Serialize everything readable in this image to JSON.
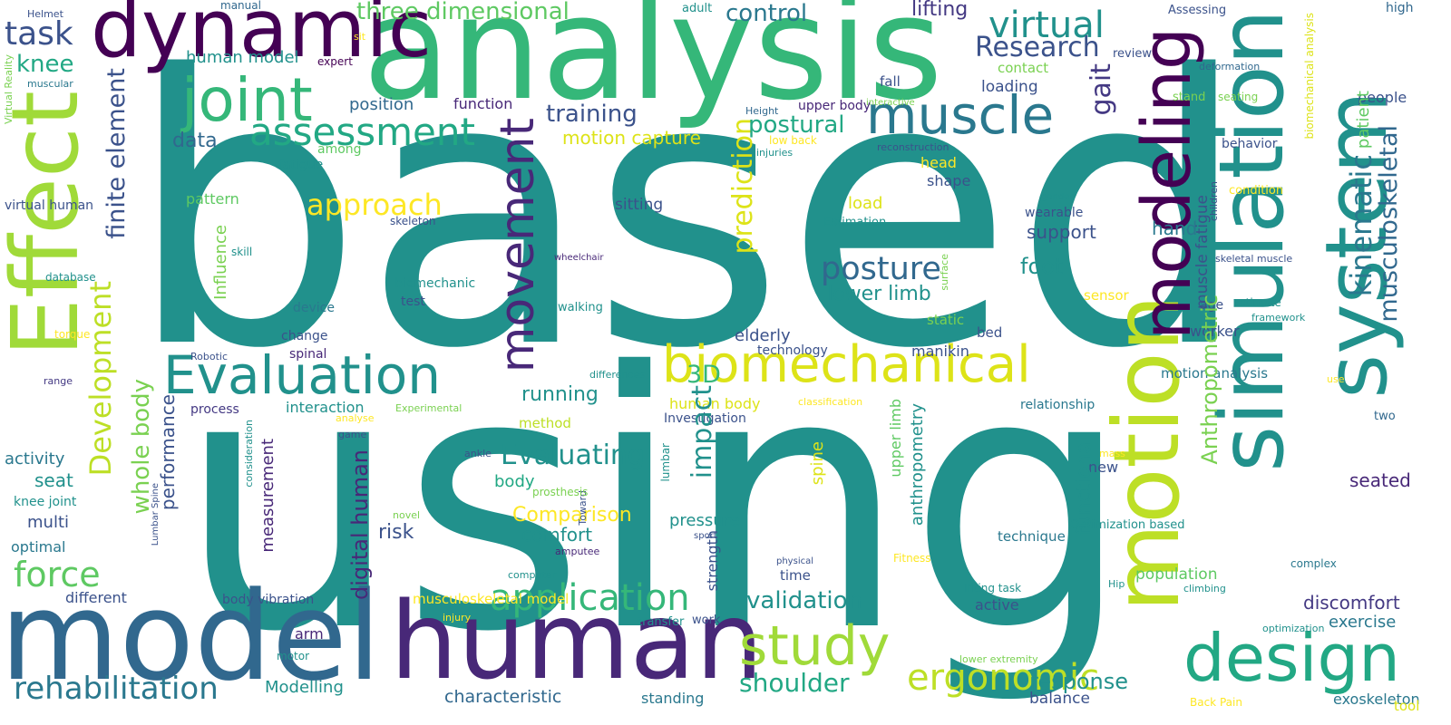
{
  "palette": {
    "teal": "#21918c",
    "tealDark": "#2a788e",
    "blue": "#31688e",
    "navy": "#3b528b",
    "indigo": "#443983",
    "purple": "#482878",
    "darkPurple": "#440154",
    "green": "#35b779",
    "midGreen": "#22a884",
    "lightGreen": "#5ec962",
    "lime": "#7ad151",
    "yellowGreen": "#a0da39",
    "limeYellow": "#bddf26",
    "yellow": "#dde318",
    "brightYellow": "#fde725"
  },
  "words": [
    {
      "text": "based",
      "color": "teal"
    },
    {
      "text": "using",
      "color": "teal"
    },
    {
      "text": "analysis",
      "color": "green"
    },
    {
      "text": "dynamic",
      "color": "darkPurple"
    },
    {
      "text": "Effect",
      "color": "yellowGreen"
    },
    {
      "text": "model",
      "color": "blue"
    },
    {
      "text": "human",
      "color": "purple"
    },
    {
      "text": "motion",
      "color": "limeYellow"
    },
    {
      "text": "simulation",
      "color": "teal"
    },
    {
      "text": "system",
      "color": "teal"
    },
    {
      "text": "modeling",
      "color": "darkPurple"
    },
    {
      "text": "design",
      "color": "midGreen"
    },
    {
      "text": "joint",
      "color": "green"
    },
    {
      "text": "muscle",
      "color": "tealDark"
    },
    {
      "text": "Evaluation",
      "color": "teal"
    },
    {
      "text": "biomechanical",
      "color": "yellow"
    },
    {
      "text": "movement",
      "color": "purple"
    },
    {
      "text": "study",
      "color": "yellowGreen"
    },
    {
      "text": "assessment",
      "color": "midGreen"
    },
    {
      "text": "posture",
      "color": "blue"
    },
    {
      "text": "application",
      "color": "green"
    },
    {
      "text": "ergonomic",
      "color": "limeYellow"
    },
    {
      "text": "virtual",
      "color": "teal"
    },
    {
      "text": "kinematic",
      "color": "tealDark"
    },
    {
      "text": "musculoskeletal",
      "color": "blue"
    },
    {
      "text": "task",
      "color": "navy"
    },
    {
      "text": "force",
      "color": "lightGreen"
    },
    {
      "text": "rehabilitation",
      "color": "tealDark"
    },
    {
      "text": "Research",
      "color": "navy"
    },
    {
      "text": "approach",
      "color": "brightYellow"
    },
    {
      "text": "prediction",
      "color": "yellow"
    },
    {
      "text": "Development",
      "color": "limeYellow"
    },
    {
      "text": "finite element",
      "color": "navy"
    },
    {
      "text": "knee",
      "color": "midGreen"
    },
    {
      "text": "three dimensional",
      "color": "lightGreen"
    },
    {
      "text": "control",
      "color": "tealDark"
    },
    {
      "text": "lifting",
      "color": "indigo"
    },
    {
      "text": "human model",
      "color": "teal"
    },
    {
      "text": "gait",
      "color": "indigo"
    },
    {
      "text": "training",
      "color": "navy"
    },
    {
      "text": "position",
      "color": "blue"
    },
    {
      "text": "function",
      "color": "purple"
    },
    {
      "text": "postural",
      "color": "midGreen"
    },
    {
      "text": "data",
      "color": "blue"
    },
    {
      "text": "motion capture",
      "color": "yellow"
    },
    {
      "text": "fatigue",
      "color": "teal"
    },
    {
      "text": "among",
      "color": "lightGreen"
    },
    {
      "text": "expert",
      "color": "darkPurple"
    },
    {
      "text": "manual",
      "color": "blue"
    },
    {
      "text": "adult",
      "color": "teal"
    },
    {
      "text": "Helmet",
      "color": "navy"
    },
    {
      "text": "sit",
      "color": "brightYellow"
    },
    {
      "text": "Virtual Reality",
      "color": "lime"
    },
    {
      "text": "muscular",
      "color": "tealDark"
    },
    {
      "text": "virtual human",
      "color": "navy"
    },
    {
      "text": "pattern",
      "color": "lightGreen"
    },
    {
      "text": "Influence",
      "color": "lime"
    },
    {
      "text": "skill",
      "color": "teal"
    },
    {
      "text": "database",
      "color": "teal"
    },
    {
      "text": "torque",
      "color": "brightYellow"
    },
    {
      "text": "range",
      "color": "indigo"
    },
    {
      "text": "activity",
      "color": "tealDark"
    },
    {
      "text": "seat",
      "color": "teal"
    },
    {
      "text": "knee joint",
      "color": "teal"
    },
    {
      "text": "multi",
      "color": "navy"
    },
    {
      "text": "optimal",
      "color": "tealDark"
    },
    {
      "text": "different",
      "color": "navy"
    },
    {
      "text": "body vibration",
      "color": "navy"
    },
    {
      "text": "arm",
      "color": "purple"
    },
    {
      "text": "motor",
      "color": "teal"
    },
    {
      "text": "Modelling",
      "color": "teal"
    },
    {
      "text": "characteristic",
      "color": "blue"
    },
    {
      "text": "standing",
      "color": "tealDark"
    },
    {
      "text": "shoulder",
      "color": "midGreen"
    },
    {
      "text": "validation",
      "color": "teal"
    },
    {
      "text": "response",
      "color": "teal"
    },
    {
      "text": "balance",
      "color": "navy"
    },
    {
      "text": "exoskeleton",
      "color": "tealDark"
    },
    {
      "text": "exercise",
      "color": "tealDark"
    },
    {
      "text": "discomfort",
      "color": "indigo"
    },
    {
      "text": "seated",
      "color": "purple"
    },
    {
      "text": "two",
      "color": "blue"
    },
    {
      "text": "tool",
      "color": "yellow"
    },
    {
      "text": "Back Pain",
      "color": "brightYellow"
    },
    {
      "text": "optimization",
      "color": "teal"
    },
    {
      "text": "complex",
      "color": "tealDark"
    },
    {
      "text": "climbing",
      "color": "teal"
    },
    {
      "text": "population",
      "color": "lightGreen"
    },
    {
      "text": "Hip",
      "color": "teal"
    },
    {
      "text": "lifting task",
      "color": "teal"
    },
    {
      "text": "active",
      "color": "navy"
    },
    {
      "text": "lower extremity",
      "color": "lime"
    },
    {
      "text": "Fitness",
      "color": "brightYellow"
    },
    {
      "text": "technique",
      "color": "tealDark"
    },
    {
      "text": "Optimization based",
      "color": "teal"
    },
    {
      "text": "mass",
      "color": "brightYellow"
    },
    {
      "text": "new",
      "color": "navy"
    },
    {
      "text": "relationship",
      "color": "tealDark"
    },
    {
      "text": "motion analysis",
      "color": "tealDark"
    },
    {
      "text": "use",
      "color": "brightYellow"
    },
    {
      "text": "worker",
      "color": "navy"
    },
    {
      "text": "age",
      "color": "navy"
    },
    {
      "text": "framework",
      "color": "teal"
    },
    {
      "text": "estimate",
      "color": "teal"
    },
    {
      "text": "skeletal muscle",
      "color": "navy"
    },
    {
      "text": "condition",
      "color": "brightYellow"
    },
    {
      "text": "gender",
      "color": "teal"
    },
    {
      "text": "children",
      "color": "navy"
    },
    {
      "text": "behavior",
      "color": "navy"
    },
    {
      "text": "biomechanical analysis",
      "color": "yellow"
    },
    {
      "text": "people",
      "color": "navy"
    },
    {
      "text": "patient",
      "color": "lightGreen"
    },
    {
      "text": "high",
      "color": "blue"
    },
    {
      "text": "Assessing",
      "color": "navy"
    },
    {
      "text": "review",
      "color": "navy"
    },
    {
      "text": "deformation",
      "color": "blue"
    },
    {
      "text": "stand",
      "color": "lime"
    },
    {
      "text": "seating",
      "color": "lime"
    },
    {
      "text": "interactive",
      "color": "lime"
    },
    {
      "text": "Height",
      "color": "blue"
    },
    {
      "text": "reconstruction",
      "color": "navy"
    },
    {
      "text": "injuries",
      "color": "teal"
    },
    {
      "text": "low back",
      "color": "brightYellow"
    },
    {
      "text": "contact",
      "color": "lime"
    },
    {
      "text": "loading",
      "color": "navy"
    },
    {
      "text": "fall",
      "color": "navy"
    },
    {
      "text": "head",
      "color": "brightYellow"
    },
    {
      "text": "shape",
      "color": "navy"
    },
    {
      "text": "load",
      "color": "yellow"
    },
    {
      "text": "Estimation",
      "color": "teal"
    },
    {
      "text": "wearable",
      "color": "navy"
    },
    {
      "text": "support",
      "color": "navy"
    },
    {
      "text": "surface",
      "color": "lime"
    },
    {
      "text": "hand",
      "color": "tealDark"
    },
    {
      "text": "foot",
      "color": "teal"
    },
    {
      "text": "sensor",
      "color": "brightYellow"
    },
    {
      "text": "lower limb",
      "color": "teal"
    },
    {
      "text": "muscle fatigue",
      "color": "navy"
    },
    {
      "text": "static",
      "color": "lime"
    },
    {
      "text": "manikin",
      "color": "navy"
    },
    {
      "text": "bed",
      "color": "navy"
    },
    {
      "text": "technology",
      "color": "navy"
    },
    {
      "text": "elderly",
      "color": "navy"
    },
    {
      "text": "3D",
      "color": "green"
    },
    {
      "text": "sitting",
      "color": "navy"
    },
    {
      "text": "walking",
      "color": "teal"
    },
    {
      "text": "differences",
      "color": "teal"
    },
    {
      "text": "running",
      "color": "teal"
    },
    {
      "text": "human body",
      "color": "yellow"
    },
    {
      "text": "Investigation",
      "color": "navy"
    },
    {
      "text": "Evaluating",
      "color": "teal"
    },
    {
      "text": "impact",
      "color": "teal"
    },
    {
      "text": "body",
      "color": "midGreen"
    },
    {
      "text": "Comparison",
      "color": "brightYellow"
    },
    {
      "text": "comfort",
      "color": "teal"
    },
    {
      "text": "pressure",
      "color": "teal"
    },
    {
      "text": "spine",
      "color": "yellow"
    },
    {
      "text": "upper limb",
      "color": "lightGreen"
    },
    {
      "text": "anthropometry",
      "color": "teal"
    },
    {
      "text": "functional",
      "color": "teal"
    },
    {
      "text": "digital human",
      "color": "purple"
    },
    {
      "text": "measurement",
      "color": "purple"
    },
    {
      "text": "whole body",
      "color": "lime"
    },
    {
      "text": "performance",
      "color": "navy"
    },
    {
      "text": "Anthropometric",
      "color": "lime"
    },
    {
      "text": "method",
      "color": "limeYellow"
    },
    {
      "text": "risk",
      "color": "navy"
    },
    {
      "text": "strength",
      "color": "navy"
    },
    {
      "text": "sport",
      "color": "navy"
    },
    {
      "text": "time",
      "color": "navy"
    },
    {
      "text": "physical",
      "color": "navy"
    },
    {
      "text": "transfer",
      "color": "teal"
    },
    {
      "text": "work",
      "color": "navy"
    },
    {
      "text": "musculoskeletal model",
      "color": "brightYellow"
    },
    {
      "text": "injury",
      "color": "brightYellow"
    },
    {
      "text": "computer",
      "color": "teal"
    },
    {
      "text": "amputee",
      "color": "purple"
    },
    {
      "text": "lumbar",
      "color": "teal"
    },
    {
      "text": "Toward",
      "color": "navy"
    },
    {
      "text": "prosthesis",
      "color": "lime"
    },
    {
      "text": "novel",
      "color": "lime"
    },
    {
      "text": "ankle",
      "color": "navy"
    },
    {
      "text": "game",
      "color": "navy"
    },
    {
      "text": "analyse",
      "color": "brightYellow"
    },
    {
      "text": "Experimental",
      "color": "lime"
    },
    {
      "text": "classification",
      "color": "brightYellow"
    },
    {
      "text": "Lumbar Spine",
      "color": "navy"
    },
    {
      "text": "consideration",
      "color": "teal"
    },
    {
      "text": "process",
      "color": "indigo"
    },
    {
      "text": "interaction",
      "color": "teal"
    },
    {
      "text": "biomechanic",
      "color": "teal"
    },
    {
      "text": "test",
      "color": "navy"
    },
    {
      "text": "device",
      "color": "tealDark"
    },
    {
      "text": "change",
      "color": "navy"
    },
    {
      "text": "spinal",
      "color": "purple"
    },
    {
      "text": "Robotic",
      "color": "navy"
    },
    {
      "text": "wheelchair",
      "color": "purple"
    },
    {
      "text": "skeleton",
      "color": "navy"
    },
    {
      "text": "upper body",
      "color": "purple"
    },
    {
      "text": "parameter",
      "color": "navy"
    }
  ]
}
